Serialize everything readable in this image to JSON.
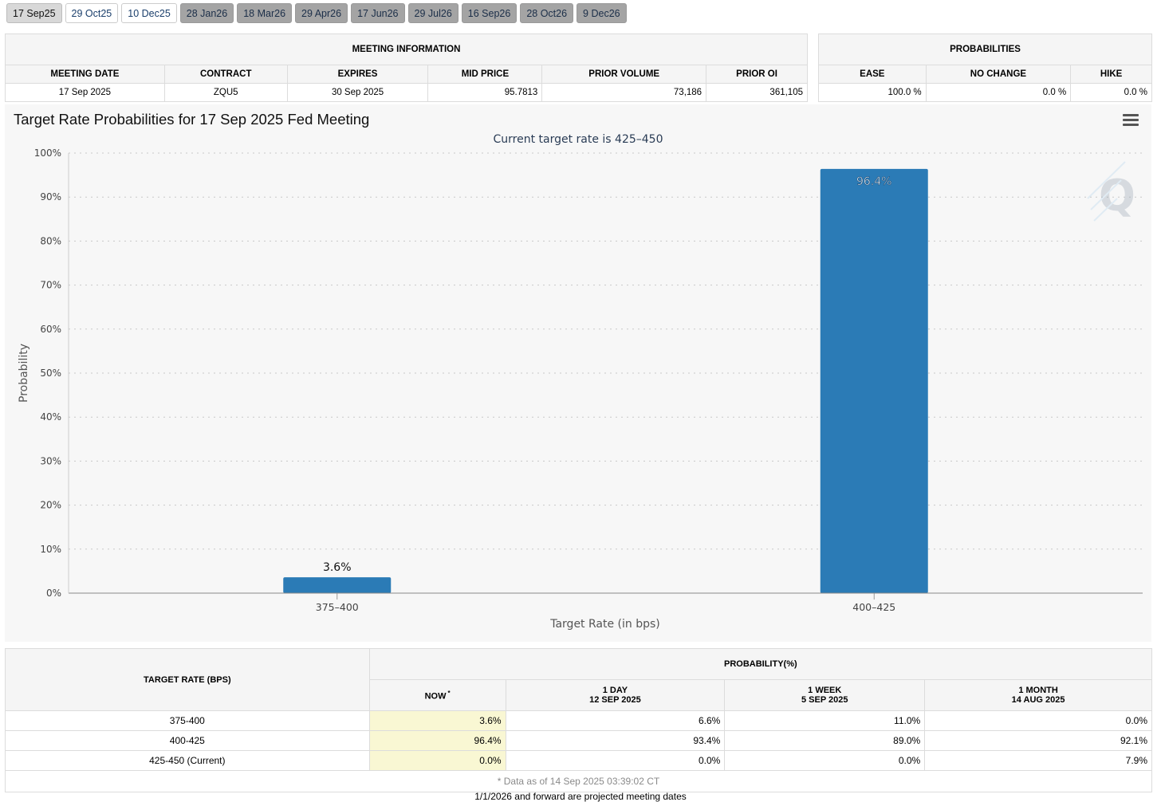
{
  "tabs": [
    {
      "label": "17 Sep25",
      "state": "active"
    },
    {
      "label": "29 Oct25",
      "state": "near"
    },
    {
      "label": "10 Dec25",
      "state": "near"
    },
    {
      "label": "28 Jan26",
      "state": "far"
    },
    {
      "label": "18 Mar26",
      "state": "far"
    },
    {
      "label": "29 Apr26",
      "state": "far"
    },
    {
      "label": "17 Jun26",
      "state": "far"
    },
    {
      "label": "29 Jul26",
      "state": "far"
    },
    {
      "label": "16 Sep26",
      "state": "far"
    },
    {
      "label": "28 Oct26",
      "state": "far"
    },
    {
      "label": "9 Dec26",
      "state": "far"
    }
  ],
  "meeting_info": {
    "header": "MEETING INFORMATION",
    "columns": [
      "MEETING DATE",
      "CONTRACT",
      "EXPIRES",
      "MID PRICE",
      "PRIOR VOLUME",
      "PRIOR OI"
    ],
    "values": [
      "17 Sep 2025",
      "ZQU5",
      "30 Sep 2025",
      "95.7813",
      "73,186",
      "361,105"
    ]
  },
  "probabilities": {
    "header": "PROBABILITIES",
    "columns": [
      "EASE",
      "NO CHANGE",
      "HIKE"
    ],
    "values": [
      "100.0 %",
      "0.0 %",
      "0.0 %"
    ]
  },
  "chart": {
    "title": "Target Rate Probabilities for 17 Sep 2025 Fed Meeting",
    "subtitle": "Current target rate is 425–450",
    "menu_icon": "hamburger-menu-icon",
    "watermark_icon": "q-logo-icon",
    "bar_color": "#2b7bb6"
  },
  "chart_data": {
    "type": "bar",
    "title": "Target Rate Probabilities for 17 Sep 2025 Fed Meeting",
    "subtitle": "Current target rate is 425–450",
    "categories": [
      "375–400",
      "400–425"
    ],
    "values": [
      3.6,
      96.4
    ],
    "data_labels": [
      "3.6%",
      "96.4%"
    ],
    "xlabel": "Target Rate (in bps)",
    "ylabel": "Probability",
    "ylim": [
      0,
      100
    ],
    "yticks": [
      "0%",
      "10%",
      "20%",
      "30%",
      "40%",
      "50%",
      "60%",
      "70%",
      "80%",
      "90%",
      "100%"
    ],
    "grid": true
  },
  "history": {
    "rate_header": "TARGET RATE (BPS)",
    "prob_header": "PROBABILITY(%)",
    "now_label": "NOW",
    "now_mark": "*",
    "periods": [
      {
        "label": "1 DAY",
        "date": "12 SEP 2025"
      },
      {
        "label": "1 WEEK",
        "date": "5 SEP 2025"
      },
      {
        "label": "1 MONTH",
        "date": "14 AUG 2025"
      }
    ],
    "rows": [
      {
        "rate": "375-400",
        "now": "3.6%",
        "day": "6.6%",
        "week": "11.0%",
        "month": "0.0%"
      },
      {
        "rate": "400-425",
        "now": "96.4%",
        "day": "93.4%",
        "week": "89.0%",
        "month": "92.1%"
      },
      {
        "rate": "425-450 (Current)",
        "now": "0.0%",
        "day": "0.0%",
        "week": "0.0%",
        "month": "7.9%"
      }
    ],
    "footnote": "* Data as of 14 Sep 2025 03:39:02 CT"
  },
  "bottom_note": "1/1/2026 and forward are projected meeting dates"
}
